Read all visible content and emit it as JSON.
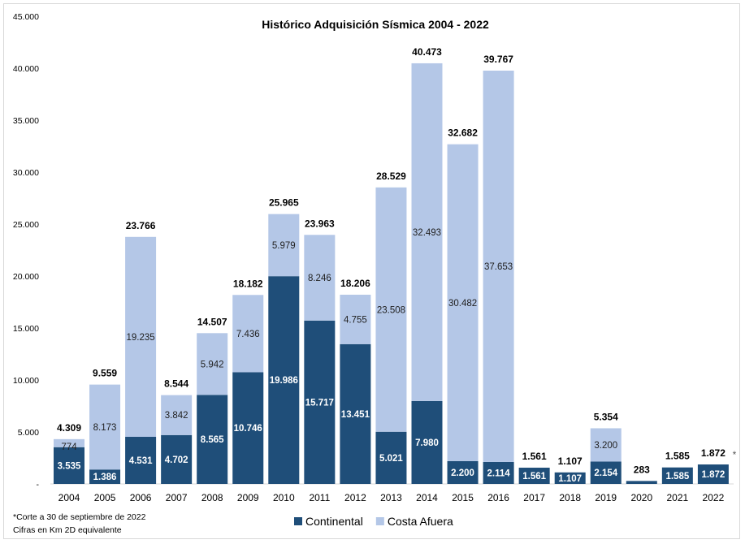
{
  "chart_data": {
    "type": "bar",
    "stacked": true,
    "title": "Histórico Adquisición Sísmica 2004 - 2022",
    "xlabel": "",
    "ylabel": "",
    "ylim": [
      0,
      45000
    ],
    "yticks": [
      0,
      5000,
      10000,
      15000,
      20000,
      25000,
      30000,
      35000,
      40000,
      45000
    ],
    "ytick_labels": [
      "-",
      "5.000",
      "10.000",
      "15.000",
      "20.000",
      "25.000",
      "30.000",
      "35.000",
      "40.000",
      "45.000"
    ],
    "grid": false,
    "legend_placement": "bottom",
    "categories": [
      "2004",
      "2005",
      "2006",
      "2007",
      "2008",
      "2009",
      "2010",
      "2011",
      "2012",
      "2013",
      "2014",
      "2015",
      "2016",
      "2017",
      "2018",
      "2019",
      "2020",
      "2021",
      "2022"
    ],
    "series": [
      {
        "name": "Continental",
        "color": "#1f4e79",
        "values": [
          3535,
          1386,
          4531,
          4702,
          8565,
          10746,
          19986,
          15717,
          13451,
          5021,
          7980,
          2200,
          2114,
          1561,
          1107,
          2154,
          283,
          1585,
          1872
        ]
      },
      {
        "name": "Costa Afuera",
        "color": "#b4c7e7",
        "values": [
          774,
          8173,
          19235,
          3842,
          5942,
          7436,
          5979,
          8246,
          4755,
          23508,
          32493,
          30482,
          37653,
          0,
          0,
          3200,
          0,
          0,
          0
        ]
      }
    ],
    "totals": [
      4309,
      9559,
      23766,
      8544,
      14507,
      18182,
      25965,
      23963,
      18206,
      28529,
      40473,
      32682,
      39767,
      1561,
      1107,
      5354,
      283,
      1585,
      1872
    ],
    "annotations": [
      {
        "category": "2022",
        "text": "*"
      }
    ]
  },
  "notes": {
    "line1": "*Corte a 30 de septiembre de 2022",
    "line2": "Cifras en Km 2D equivalente"
  }
}
